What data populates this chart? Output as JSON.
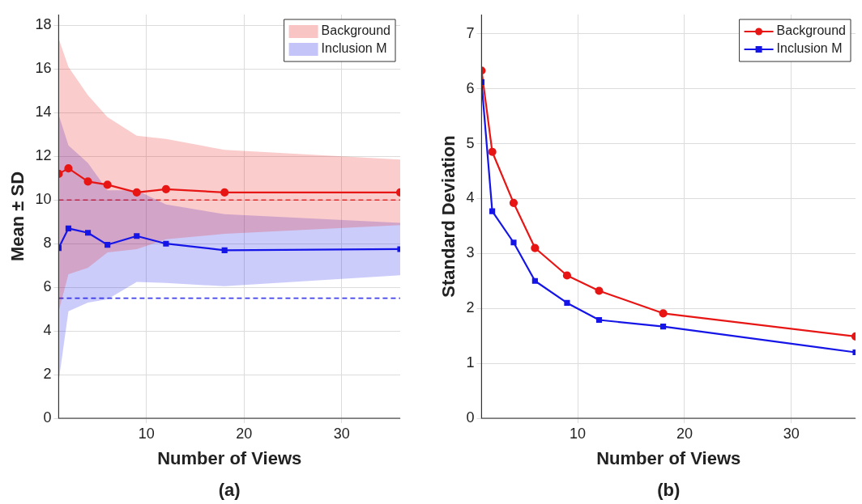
{
  "chart_data": [
    {
      "type": "line",
      "xlabel": "Number of Views",
      "ylabel": "Mean ± SD",
      "annotations": [
        "(a)"
      ],
      "x": [
        1,
        2,
        4,
        6,
        9,
        12,
        18,
        36
      ],
      "xlim": [
        1,
        36
      ],
      "xticks": [
        10,
        20,
        30
      ],
      "ylim": [
        0,
        18.5
      ],
      "yticks": [
        0,
        2,
        4,
        6,
        8,
        10,
        12,
        14,
        16,
        18
      ],
      "grid": true,
      "legend": "top right",
      "series": [
        {
          "name": "Background",
          "color": "#e81515",
          "marker": "circle",
          "values": [
            11.2,
            11.45,
            10.85,
            10.7,
            10.35,
            10.5,
            10.35,
            10.35
          ],
          "lower": [
            4.9,
            6.6,
            6.9,
            7.6,
            7.75,
            8.2,
            8.45,
            8.85
          ],
          "upper": [
            17.4,
            16.1,
            14.8,
            13.8,
            12.95,
            12.8,
            12.3,
            11.85
          ]
        },
        {
          "name": "Inclusion M",
          "color": "#1515e8",
          "marker": "square",
          "values": [
            7.8,
            8.7,
            8.5,
            7.95,
            8.35,
            8.0,
            7.7,
            7.75
          ],
          "lower": [
            1.7,
            4.9,
            5.3,
            5.45,
            6.25,
            6.2,
            6.05,
            6.55
          ],
          "upper": [
            13.9,
            12.5,
            11.7,
            10.45,
            10.45,
            9.8,
            9.35,
            8.95
          ]
        }
      ],
      "ref_lines": [
        {
          "axis": "y",
          "value": 10,
          "color": "#e03030",
          "line_style": "dashed"
        },
        {
          "axis": "y",
          "value": 5.5,
          "color": "#4040f0",
          "line_style": "dashed"
        }
      ]
    },
    {
      "type": "line",
      "xlabel": "Number of Views",
      "ylabel": "Standard Deviation",
      "annotations": [
        "(b)"
      ],
      "x": [
        1,
        2,
        4,
        6,
        9,
        12,
        18,
        36
      ],
      "xlim": [
        1,
        36
      ],
      "xticks": [
        10,
        20,
        30
      ],
      "ylim": [
        0,
        7.35
      ],
      "yticks": [
        0,
        1,
        2,
        3,
        4,
        5,
        6,
        7
      ],
      "grid": true,
      "legend": "top right",
      "series": [
        {
          "name": "Background",
          "color": "#e81515",
          "marker": "circle",
          "values": [
            6.33,
            4.85,
            3.92,
            3.1,
            2.6,
            2.32,
            1.91,
            1.49
          ]
        },
        {
          "name": "Inclusion M",
          "color": "#1515e8",
          "marker": "square",
          "values": [
            6.12,
            3.77,
            3.2,
            2.5,
            2.1,
            1.79,
            1.67,
            1.2
          ]
        }
      ]
    }
  ]
}
